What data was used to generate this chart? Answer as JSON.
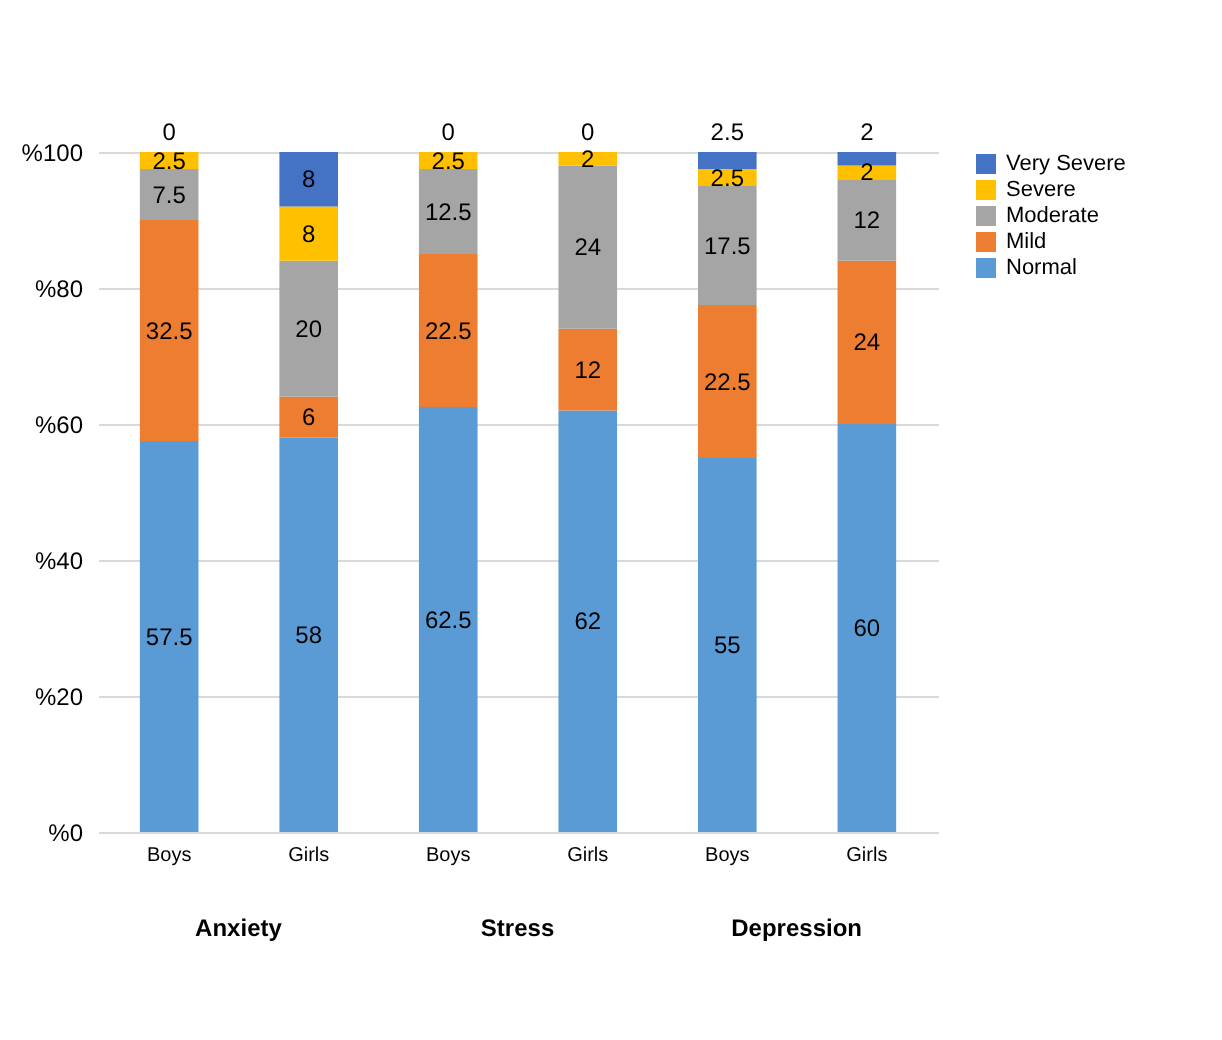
{
  "chart_data": {
    "type": "bar",
    "stacked": true,
    "categories": [
      "Boys",
      "Girls",
      "Boys",
      "Girls",
      "Boys",
      "Girls"
    ],
    "series": [
      {
        "name": "Normal",
        "color": "#5b9bd5",
        "values": [
          57.5,
          58,
          62.5,
          62,
          55,
          60
        ]
      },
      {
        "name": "Mild",
        "color": "#ed7d31",
        "values": [
          32.5,
          6,
          22.5,
          12,
          22.5,
          24
        ]
      },
      {
        "name": "Moderate",
        "color": "#a5a5a5",
        "values": [
          7.5,
          20,
          12.5,
          24,
          17.5,
          12
        ]
      },
      {
        "name": "Severe",
        "color": "#ffc000",
        "values": [
          2.5,
          8,
          2.5,
          2,
          2.5,
          2
        ]
      },
      {
        "name": "Very Severe",
        "color": "#4472c4",
        "values": [
          0,
          8,
          0,
          0,
          2.5,
          2
        ]
      }
    ],
    "ylim": [
      0,
      100
    ],
    "yticks": [
      {
        "value": 0,
        "label": "%0"
      },
      {
        "value": 20,
        "label": "%20"
      },
      {
        "value": 40,
        "label": "%40"
      },
      {
        "value": 60,
        "label": "%60"
      },
      {
        "value": 80,
        "label": "%80"
      },
      {
        "value": 100,
        "label": "%100"
      }
    ],
    "grid": "y",
    "legend": "right",
    "data_labels": true,
    "annotations": [
      "Anxiety",
      "Stress",
      "Depression"
    ]
  }
}
